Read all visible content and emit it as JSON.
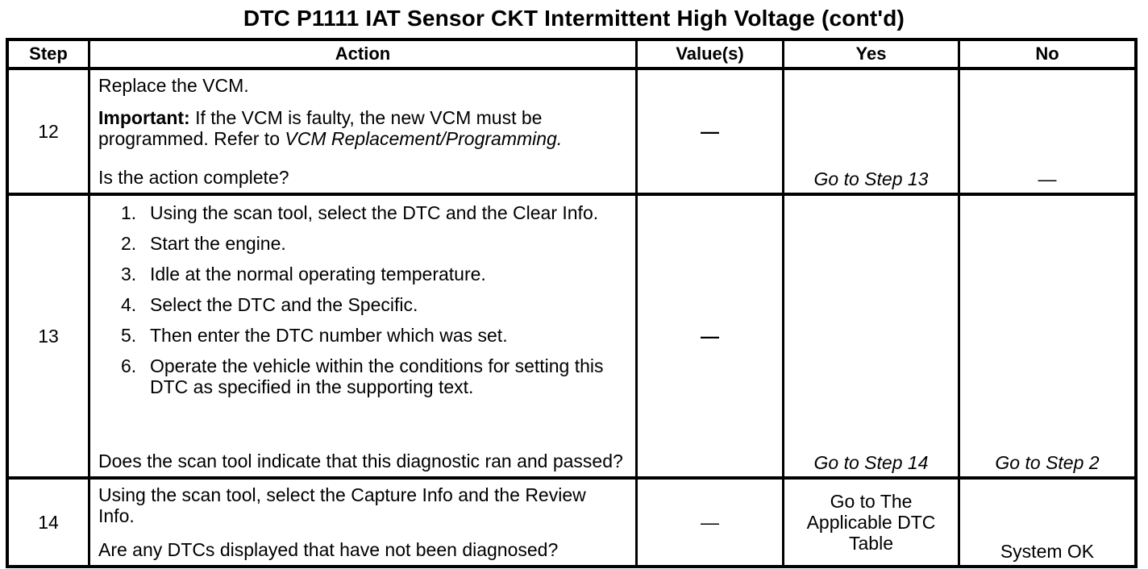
{
  "title": "DTC P1111 IAT Sensor CKT Intermittent High Voltage (cont'd)",
  "table": {
    "headers": {
      "step": "Step",
      "action": "Action",
      "values": "Value(s)",
      "yes": "Yes",
      "no": "No"
    },
    "rows": [
      {
        "step": "12",
        "action": {
          "line1": "Replace the VCM.",
          "important_label": "Important:",
          "important_text": " If the VCM is faulty, the new VCM must be programmed. Refer to ",
          "important_ref": "VCM Replacement/Programming.",
          "question": "Is the action complete?"
        },
        "value": "—",
        "yes": "Go to Step 13",
        "no": "—"
      },
      {
        "step": "13",
        "action": {
          "list": [
            {
              "num": "1.",
              "text": "Using the scan tool, select the DTC and the Clear Info."
            },
            {
              "num": "2.",
              "text": "Start the engine."
            },
            {
              "num": "3.",
              "text": "Idle at the normal operating temperature."
            },
            {
              "num": "4.",
              "text": "Select the DTC and the Specific."
            },
            {
              "num": "5.",
              "text": "Then enter the DTC number which was set."
            },
            {
              "num": "6.",
              "text": "Operate the vehicle within the conditions for setting this DTC as specified in the supporting text."
            }
          ],
          "question": "Does the scan tool indicate that this diagnostic ran and passed?"
        },
        "value": "—",
        "yes": "Go to Step 14",
        "no": "Go to Step 2"
      },
      {
        "step": "14",
        "action": {
          "line1": "Using the scan tool, select the Capture Info and the Review Info.",
          "question": "Are any DTCs displayed that have not been diagnosed?"
        },
        "value": "—",
        "yes": "Go to The Applicable DTC Table",
        "no": "System OK"
      }
    ]
  }
}
